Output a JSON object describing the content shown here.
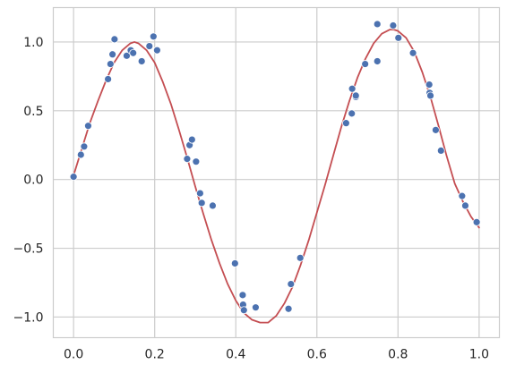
{
  "chart_data": {
    "type": "scatter",
    "title": "",
    "xlabel": "",
    "ylabel": "",
    "xlim": [
      -0.05,
      1.05
    ],
    "ylim": [
      -1.15,
      1.25
    ],
    "grid": true,
    "legend": "none",
    "x_ticks": [
      {
        "value": 0.0,
        "label": "0.0"
      },
      {
        "value": 0.2,
        "label": "0.2"
      },
      {
        "value": 0.4,
        "label": "0.4"
      },
      {
        "value": 0.6,
        "label": "0.6"
      },
      {
        "value": 0.8,
        "label": "0.8"
      },
      {
        "value": 1.0,
        "label": "1.0"
      }
    ],
    "y_ticks": [
      {
        "value": 1.0,
        "label": "1.0"
      },
      {
        "value": 0.5,
        "label": "0.5"
      },
      {
        "value": 0.0,
        "label": "0.0"
      },
      {
        "value": -0.5,
        "label": "−0.5"
      },
      {
        "value": -1.0,
        "label": "−1.0"
      }
    ],
    "series": [
      {
        "kind": "scatter",
        "color": "#4c72b0",
        "points": [
          {
            "x": 0.0,
            "y": 0.02
          },
          {
            "x": 0.018,
            "y": 0.18
          },
          {
            "x": 0.026,
            "y": 0.24
          },
          {
            "x": 0.036,
            "y": 0.39
          },
          {
            "x": 0.085,
            "y": 0.73
          },
          {
            "x": 0.091,
            "y": 0.84
          },
          {
            "x": 0.096,
            "y": 0.91
          },
          {
            "x": 0.101,
            "y": 1.02
          },
          {
            "x": 0.131,
            "y": 0.9
          },
          {
            "x": 0.141,
            "y": 0.94
          },
          {
            "x": 0.147,
            "y": 0.92
          },
          {
            "x": 0.168,
            "y": 0.86
          },
          {
            "x": 0.187,
            "y": 0.97
          },
          {
            "x": 0.197,
            "y": 1.04
          },
          {
            "x": 0.206,
            "y": 0.94
          },
          {
            "x": 0.28,
            "y": 0.15
          },
          {
            "x": 0.286,
            "y": 0.25
          },
          {
            "x": 0.292,
            "y": 0.29
          },
          {
            "x": 0.302,
            "y": 0.13
          },
          {
            "x": 0.312,
            "y": -0.1
          },
          {
            "x": 0.316,
            "y": -0.17
          },
          {
            "x": 0.343,
            "y": -0.19
          },
          {
            "x": 0.398,
            "y": -0.61
          },
          {
            "x": 0.417,
            "y": -0.84
          },
          {
            "x": 0.418,
            "y": -0.91
          },
          {
            "x": 0.42,
            "y": -0.95
          },
          {
            "x": 0.449,
            "y": -0.93
          },
          {
            "x": 0.53,
            "y": -0.94
          },
          {
            "x": 0.536,
            "y": -0.76
          },
          {
            "x": 0.559,
            "y": -0.57
          },
          {
            "x": 0.672,
            "y": 0.41
          },
          {
            "x": 0.686,
            "y": 0.48
          },
          {
            "x": 0.687,
            "y": 0.66
          },
          {
            "x": 0.696,
            "y": 0.6
          },
          {
            "x": 0.696,
            "y": 0.61
          },
          {
            "x": 0.719,
            "y": 0.84
          },
          {
            "x": 0.749,
            "y": 0.86
          },
          {
            "x": 0.749,
            "y": 1.13
          },
          {
            "x": 0.788,
            "y": 1.12
          },
          {
            "x": 0.801,
            "y": 1.03
          },
          {
            "x": 0.837,
            "y": 0.92
          },
          {
            "x": 0.877,
            "y": 0.69
          },
          {
            "x": 0.878,
            "y": 0.63
          },
          {
            "x": 0.88,
            "y": 0.61
          },
          {
            "x": 0.893,
            "y": 0.36
          },
          {
            "x": 0.906,
            "y": 0.21
          },
          {
            "x": 0.958,
            "y": -0.12
          },
          {
            "x": 0.966,
            "y": -0.19
          },
          {
            "x": 0.994,
            "y": -0.31
          }
        ]
      },
      {
        "kind": "line",
        "color": "#c44e52",
        "points": [
          {
            "x": 0.0,
            "y": 0.03
          },
          {
            "x": 0.02,
            "y": 0.22
          },
          {
            "x": 0.04,
            "y": 0.41
          },
          {
            "x": 0.06,
            "y": 0.57
          },
          {
            "x": 0.08,
            "y": 0.72
          },
          {
            "x": 0.1,
            "y": 0.85
          },
          {
            "x": 0.12,
            "y": 0.94
          },
          {
            "x": 0.14,
            "y": 0.99
          },
          {
            "x": 0.15,
            "y": 1.0
          },
          {
            "x": 0.16,
            "y": 0.99
          },
          {
            "x": 0.18,
            "y": 0.94
          },
          {
            "x": 0.2,
            "y": 0.85
          },
          {
            "x": 0.22,
            "y": 0.71
          },
          {
            "x": 0.24,
            "y": 0.55
          },
          {
            "x": 0.26,
            "y": 0.36
          },
          {
            "x": 0.28,
            "y": 0.16
          },
          {
            "x": 0.3,
            "y": -0.05
          },
          {
            "x": 0.32,
            "y": -0.25
          },
          {
            "x": 0.34,
            "y": -0.44
          },
          {
            "x": 0.36,
            "y": -0.61
          },
          {
            "x": 0.38,
            "y": -0.76
          },
          {
            "x": 0.4,
            "y": -0.88
          },
          {
            "x": 0.42,
            "y": -0.97
          },
          {
            "x": 0.44,
            "y": -1.02
          },
          {
            "x": 0.46,
            "y": -1.04
          },
          {
            "x": 0.47,
            "y": -1.04
          },
          {
            "x": 0.48,
            "y": -1.04
          },
          {
            "x": 0.5,
            "y": -0.99
          },
          {
            "x": 0.52,
            "y": -0.9
          },
          {
            "x": 0.54,
            "y": -0.78
          },
          {
            "x": 0.56,
            "y": -0.62
          },
          {
            "x": 0.58,
            "y": -0.44
          },
          {
            "x": 0.6,
            "y": -0.24
          },
          {
            "x": 0.62,
            "y": -0.04
          },
          {
            "x": 0.64,
            "y": 0.17
          },
          {
            "x": 0.66,
            "y": 0.38
          },
          {
            "x": 0.68,
            "y": 0.57
          },
          {
            "x": 0.7,
            "y": 0.74
          },
          {
            "x": 0.72,
            "y": 0.88
          },
          {
            "x": 0.74,
            "y": 0.99
          },
          {
            "x": 0.76,
            "y": 1.06
          },
          {
            "x": 0.78,
            "y": 1.09
          },
          {
            "x": 0.79,
            "y": 1.09
          },
          {
            "x": 0.8,
            "y": 1.08
          },
          {
            "x": 0.82,
            "y": 1.03
          },
          {
            "x": 0.84,
            "y": 0.93
          },
          {
            "x": 0.86,
            "y": 0.78
          },
          {
            "x": 0.88,
            "y": 0.6
          },
          {
            "x": 0.9,
            "y": 0.39
          },
          {
            "x": 0.92,
            "y": 0.17
          },
          {
            "x": 0.94,
            "y": -0.03
          },
          {
            "x": 0.96,
            "y": -0.16
          },
          {
            "x": 0.98,
            "y": -0.27
          },
          {
            "x": 1.0,
            "y": -0.35
          }
        ]
      }
    ],
    "colors": {
      "axes_edge": "#cccccc",
      "grid": "#cccccc",
      "background": "#ffffff"
    }
  }
}
